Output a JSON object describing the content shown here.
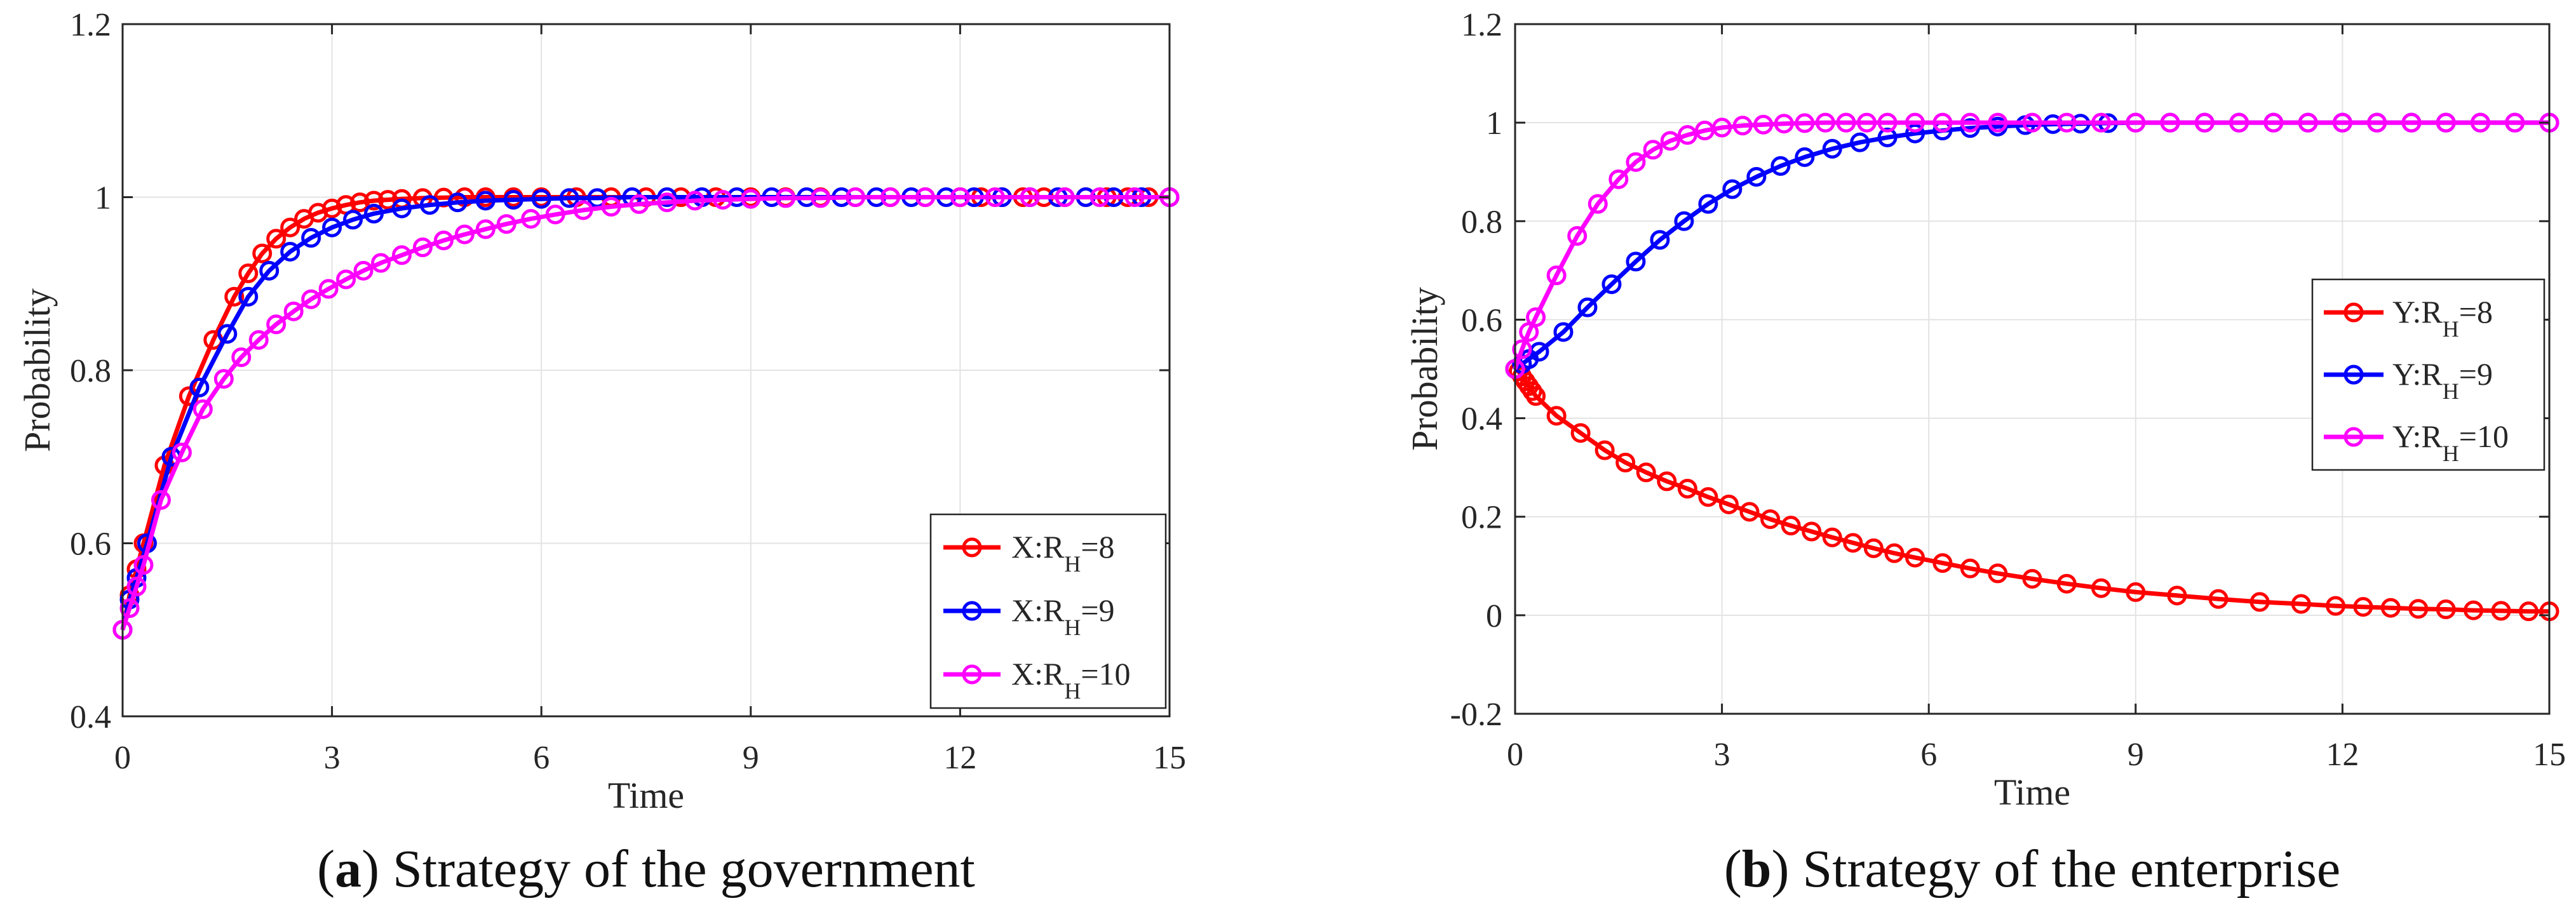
{
  "chart_data": [
    {
      "type": "line",
      "panel": "a",
      "caption_letter": "a",
      "caption_text": " Strategy of the government",
      "xlabel": "Time",
      "ylabel": "Probability",
      "xlim": [
        0,
        15
      ],
      "ylim": [
        0.4,
        1.2
      ],
      "xticks": [
        0,
        3,
        6,
        9,
        12,
        15
      ],
      "yticks": [
        0.4,
        0.6,
        0.8,
        1,
        1.2
      ],
      "xtick_labels": [
        "0",
        "3",
        "6",
        "9",
        "12",
        "15"
      ],
      "ytick_labels": [
        "0.4",
        "0.6",
        "0.8",
        "1",
        "1.2"
      ],
      "grid": true,
      "legend_position": "bottom-right",
      "series": [
        {
          "name": "X:RH=8",
          "legend_prefix": "X:R",
          "legend_sub": "H",
          "legend_suffix": "=8",
          "color": "#ff0000",
          "x": [
            0,
            0.1,
            0.2,
            0.3,
            0.6,
            0.95,
            1.3,
            1.6,
            1.8,
            2.0,
            2.2,
            2.4,
            2.6,
            2.8,
            3.0,
            3.2,
            3.4,
            3.6,
            3.8,
            4.0,
            4.3,
            4.6,
            4.9,
            5.2,
            5.6,
            6.0,
            6.5,
            7.0,
            7.5,
            8.0,
            8.5,
            9.0,
            9.5,
            10.0,
            10.5,
            11.0,
            11.5,
            12.0,
            12.3,
            12.6,
            12.9,
            13.2,
            13.5,
            13.8,
            14.1,
            14.4,
            14.7,
            15.0
          ],
          "y": [
            0.5,
            0.54,
            0.57,
            0.6,
            0.69,
            0.77,
            0.835,
            0.885,
            0.912,
            0.935,
            0.952,
            0.965,
            0.975,
            0.982,
            0.987,
            0.991,
            0.994,
            0.996,
            0.997,
            0.998,
            0.999,
            0.9995,
            1,
            1,
            1,
            1,
            1,
            1,
            1,
            1,
            1,
            1,
            1,
            1,
            1,
            1,
            1,
            1,
            1,
            1,
            1,
            1,
            1,
            1,
            1,
            1,
            1,
            1
          ]
        },
        {
          "name": "X:RH=9",
          "legend_prefix": "X:R",
          "legend_sub": "H",
          "legend_suffix": "=9",
          "color": "#0000ff",
          "x": [
            0,
            0.1,
            0.2,
            0.35,
            0.7,
            1.1,
            1.5,
            1.8,
            2.1,
            2.4,
            2.7,
            3.0,
            3.3,
            3.6,
            4.0,
            4.4,
            4.8,
            5.2,
            5.6,
            6.0,
            6.4,
            6.8,
            7.3,
            7.8,
            8.3,
            8.8,
            9.3,
            9.8,
            10.3,
            10.8,
            11.3,
            11.8,
            12.2,
            12.6,
            13.0,
            13.4,
            13.8,
            14.2,
            14.6,
            15.0
          ],
          "y": [
            0.5,
            0.535,
            0.56,
            0.6,
            0.7,
            0.78,
            0.842,
            0.885,
            0.915,
            0.937,
            0.953,
            0.965,
            0.974,
            0.981,
            0.987,
            0.991,
            0.994,
            0.996,
            0.997,
            0.998,
            0.999,
            0.999,
            1,
            1,
            1,
            1,
            1,
            1,
            1,
            1,
            1,
            1,
            1,
            1,
            1,
            1,
            1,
            1,
            1,
            1
          ]
        },
        {
          "name": "X:RH=10",
          "legend_prefix": "X:R",
          "legend_sub": "H",
          "legend_suffix": "=10",
          "color": "#ff00ff",
          "x": [
            0,
            0.1,
            0.2,
            0.3,
            0.55,
            0.85,
            1.15,
            1.45,
            1.7,
            1.95,
            2.2,
            2.45,
            2.7,
            2.95,
            3.2,
            3.45,
            3.7,
            4.0,
            4.3,
            4.6,
            4.9,
            5.2,
            5.5,
            5.85,
            6.2,
            6.6,
            7.0,
            7.4,
            7.8,
            8.2,
            8.6,
            9.0,
            9.5,
            10.0,
            10.5,
            11.0,
            11.5,
            12.0,
            12.5,
            13.0,
            13.5,
            14.0,
            14.5,
            15.0
          ],
          "y": [
            0.5,
            0.525,
            0.55,
            0.575,
            0.65,
            0.705,
            0.755,
            0.79,
            0.815,
            0.835,
            0.853,
            0.868,
            0.882,
            0.894,
            0.905,
            0.915,
            0.924,
            0.933,
            0.942,
            0.95,
            0.957,
            0.963,
            0.969,
            0.975,
            0.98,
            0.985,
            0.989,
            0.992,
            0.994,
            0.996,
            0.997,
            0.998,
            0.999,
            0.999,
            1,
            1,
            1,
            1,
            1,
            1,
            1,
            1,
            1,
            1
          ]
        }
      ]
    },
    {
      "type": "line",
      "panel": "b",
      "caption_letter": "b",
      "caption_text": " Strategy of the enterprise",
      "xlabel": "Time",
      "ylabel": "Probability",
      "xlim": [
        0,
        15
      ],
      "ylim": [
        -0.2,
        1.2
      ],
      "xticks": [
        0,
        3,
        6,
        9,
        12,
        15
      ],
      "yticks": [
        -0.2,
        0,
        0.2,
        0.4,
        0.6,
        0.8,
        1,
        1.2
      ],
      "xtick_labels": [
        "0",
        "3",
        "6",
        "9",
        "12",
        "15"
      ],
      "ytick_labels": [
        "-0.2",
        "0",
        "0.2",
        "0.4",
        "0.6",
        "0.8",
        "1",
        "1.2"
      ],
      "grid": true,
      "legend_position": "middle-right",
      "series": [
        {
          "name": "Y:RH=8",
          "legend_prefix": "Y:R",
          "legend_sub": "H",
          "legend_suffix": "=8",
          "color": "#ff0000",
          "x": [
            0,
            0.05,
            0.1,
            0.15,
            0.2,
            0.25,
            0.3,
            0.6,
            0.95,
            1.3,
            1.6,
            1.9,
            2.2,
            2.5,
            2.8,
            3.1,
            3.4,
            3.7,
            4.0,
            4.3,
            4.6,
            4.9,
            5.2,
            5.5,
            5.8,
            6.2,
            6.6,
            7.0,
            7.5,
            8.0,
            8.5,
            9.0,
            9.6,
            10.2,
            10.8,
            11.4,
            11.9,
            12.3,
            12.7,
            13.1,
            13.5,
            13.9,
            14.3,
            14.7,
            15.0
          ],
          "y": [
            0.5,
            0.495,
            0.485,
            0.475,
            0.465,
            0.455,
            0.445,
            0.405,
            0.37,
            0.335,
            0.31,
            0.29,
            0.272,
            0.257,
            0.24,
            0.225,
            0.21,
            0.195,
            0.182,
            0.17,
            0.158,
            0.147,
            0.136,
            0.126,
            0.117,
            0.106,
            0.095,
            0.085,
            0.074,
            0.064,
            0.055,
            0.047,
            0.04,
            0.033,
            0.027,
            0.023,
            0.019,
            0.017,
            0.015,
            0.013,
            0.012,
            0.01,
            0.009,
            0.008,
            0.008
          ]
        },
        {
          "name": "Y:RH=9",
          "legend_prefix": "Y:R",
          "legend_sub": "H",
          "legend_suffix": "=9",
          "color": "#0000ff",
          "x": [
            0,
            0.1,
            0.2,
            0.35,
            0.7,
            1.05,
            1.4,
            1.75,
            2.1,
            2.45,
            2.8,
            3.15,
            3.5,
            3.85,
            4.2,
            4.6,
            5.0,
            5.4,
            5.8,
            6.2,
            6.6,
            7.0,
            7.4,
            7.8,
            8.2,
            8.6,
            9.0,
            9.5,
            10.0,
            10.5,
            11.0,
            11.5,
            12.0,
            12.5,
            13.0,
            13.5,
            14.0,
            14.5,
            15.0
          ],
          "y": [
            0.5,
            0.51,
            0.52,
            0.535,
            0.575,
            0.625,
            0.672,
            0.718,
            0.762,
            0.8,
            0.835,
            0.865,
            0.89,
            0.912,
            0.93,
            0.947,
            0.96,
            0.97,
            0.978,
            0.984,
            0.989,
            0.992,
            0.995,
            0.997,
            0.998,
            0.999,
            1,
            1,
            1,
            1,
            1,
            1,
            1,
            1,
            1,
            1,
            1,
            1,
            1
          ]
        },
        {
          "name": "Y:RH=10",
          "legend_prefix": "Y:R",
          "legend_sub": "H",
          "legend_suffix": "=10",
          "color": "#ff00ff",
          "x": [
            0,
            0.1,
            0.2,
            0.3,
            0.6,
            0.9,
            1.2,
            1.5,
            1.75,
            2.0,
            2.25,
            2.5,
            2.75,
            3.0,
            3.3,
            3.6,
            3.9,
            4.2,
            4.5,
            4.8,
            5.1,
            5.4,
            5.8,
            6.2,
            6.6,
            7.0,
            7.5,
            8.0,
            8.5,
            9.0,
            9.5,
            10.0,
            10.5,
            11.0,
            11.5,
            12.0,
            12.5,
            13.0,
            13.5,
            14.0,
            14.5,
            15.0
          ],
          "y": [
            0.5,
            0.54,
            0.575,
            0.605,
            0.69,
            0.77,
            0.835,
            0.885,
            0.92,
            0.945,
            0.963,
            0.975,
            0.984,
            0.99,
            0.994,
            0.996,
            0.998,
            0.999,
            1,
            1,
            1,
            1,
            1,
            1,
            1,
            1,
            1,
            1,
            1,
            1,
            1,
            1,
            1,
            1,
            1,
            1,
            1,
            1,
            1,
            1,
            1,
            1
          ]
        }
      ]
    }
  ]
}
